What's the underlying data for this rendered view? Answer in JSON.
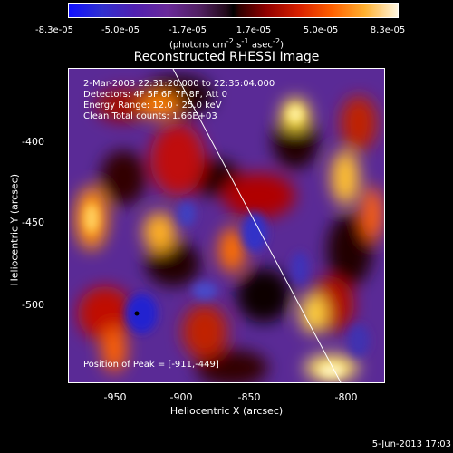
{
  "colorbar": {
    "tick_labels": [
      "-8.3e-05",
      "-5.0e-05",
      "-1.7e-05",
      "1.7e-05",
      "5.0e-05",
      "8.3e-05"
    ],
    "unit_html": "(photons cm<sup>-2</sup> s<sup>-1</sup> asec<sup>-2</sup>)"
  },
  "image": {
    "title": "Reconstructed RHESSI Image",
    "info_lines": [
      "2-Mar-2003 22:31:20.000 to 22:35:04.000",
      "Detectors: 4F 5F 6F 7F 8F, Att 0",
      "Energy Range: 12.0 - 25.0 keV",
      "Clean     Total counts: 1.66E+03"
    ],
    "peak_label": "Position of Peak = [-911,-449]"
  },
  "axes": {
    "xlabel": "Heliocentric X (arcsec)",
    "ylabel": "Heliocentric Y (arcsec)",
    "xticks": [
      "-950",
      "-900",
      "-850",
      "-800"
    ],
    "yticks": [
      "-400",
      "-450",
      "-500"
    ]
  },
  "footer": {
    "timestamp": "5-Jun-2013 17:03"
  }
}
